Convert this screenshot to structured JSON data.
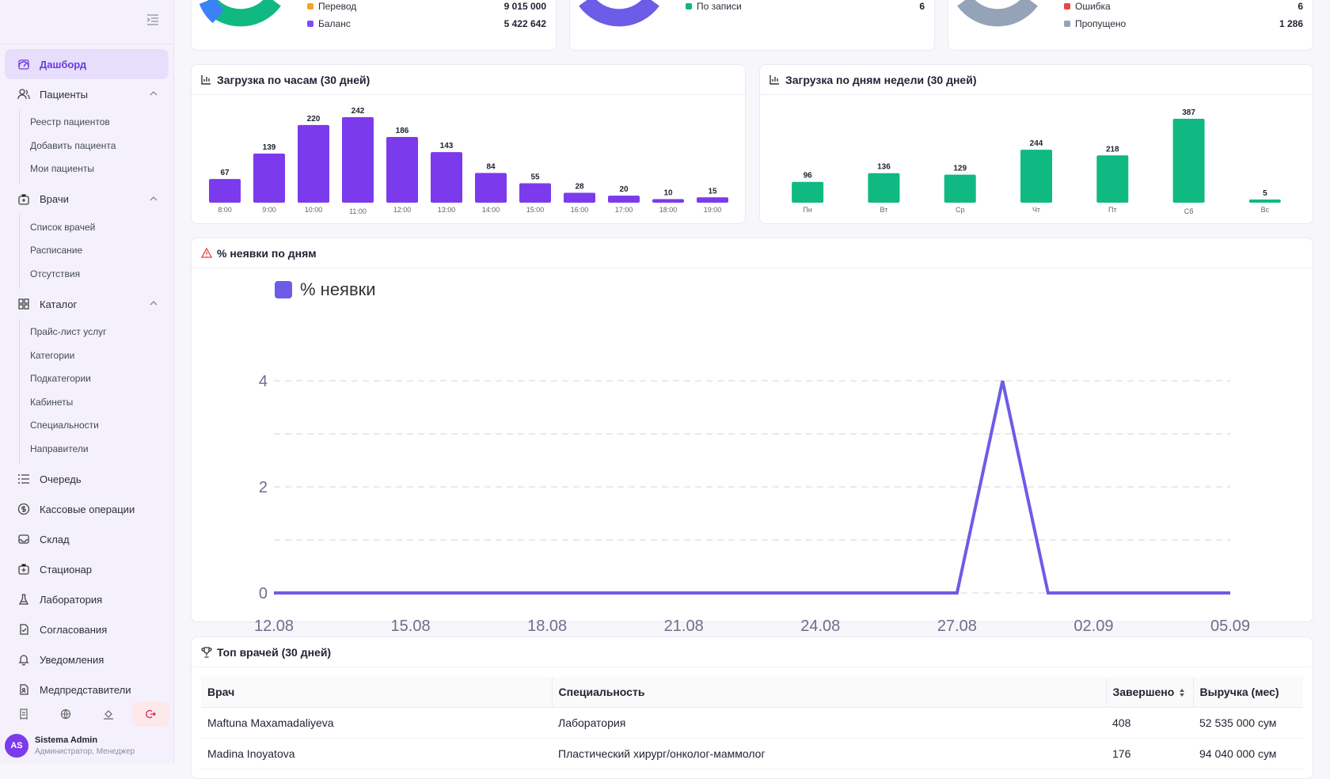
{
  "sidebar": {
    "nav": {
      "dashboard": "Дашборд",
      "patients": "Пациенты",
      "patients_sub": [
        "Реестр пациентов",
        "Добавить пациента",
        "Мои пациенты"
      ],
      "doctors": "Врачи",
      "doctors_sub": [
        "Список врачей",
        "Расписание",
        "Отсутствия"
      ],
      "catalog": "Каталог",
      "catalog_sub": [
        "Прайс-лист услуг",
        "Категории",
        "Подкатегории",
        "Кабинеты",
        "Специальности",
        "Направители"
      ],
      "queue": "Очередь",
      "cash": "Кассовые операции",
      "warehouse": "Склад",
      "hospital": "Стационар",
      "lab": "Лаборатория",
      "approvals": "Согласования",
      "notifications": "Уведомления",
      "reps": "Медпредставители"
    },
    "user": {
      "initials": "AS",
      "name": "Sistema Admin",
      "role": "Администратор, Менеджер"
    }
  },
  "top_cards": {
    "payments": {
      "legend": [
        {
          "label": "Перевод",
          "value": "9 015 000",
          "color": "#f5a524"
        },
        {
          "label": "Баланс",
          "value": "5 422 642",
          "color": "#7c4dff"
        }
      ]
    },
    "sources": {
      "legend": [
        {
          "label": "По записи",
          "value": "6",
          "color": "#10b981"
        }
      ]
    },
    "statuses": {
      "legend": [
        {
          "label": "Ошибка",
          "value": "6",
          "color": "#ef4444"
        },
        {
          "label": "Пропущено",
          "value": "1 286",
          "color": "#94a3b8"
        }
      ]
    }
  },
  "hours_chart": {
    "title": "Загрузка по часам (30 дней)",
    "chart_data": {
      "type": "bar",
      "categories": [
        "8:00",
        "9:00",
        "10:00",
        "11:00",
        "12:00",
        "13:00",
        "14:00",
        "15:00",
        "16:00",
        "17:00",
        "18:00",
        "19:00"
      ],
      "values": [
        67,
        139,
        220,
        242,
        186,
        143,
        84,
        55,
        28,
        20,
        10,
        15
      ],
      "color": "#7c3aed"
    }
  },
  "weekday_chart": {
    "title": "Загрузка по дням недели (30 дней)",
    "chart_data": {
      "type": "bar",
      "categories": [
        "Пн",
        "Вт",
        "Ср",
        "Чт",
        "Пт",
        "Сб",
        "Вс"
      ],
      "values": [
        96,
        136,
        129,
        244,
        218,
        387,
        5
      ],
      "color": "#10b981"
    }
  },
  "noshow_chart": {
    "title": "% неявки по дням",
    "chart_data": {
      "type": "line",
      "series": [
        {
          "name": "% неявки",
          "color": "#6c5ce7"
        }
      ],
      "x_ticks": [
        "12.08",
        "15.08",
        "18.08",
        "21.08",
        "24.08",
        "27.08",
        "02.09",
        "05.09"
      ],
      "y_ticks": [
        "0",
        "2",
        "4"
      ],
      "ylim": [
        0,
        4
      ],
      "points": [
        {
          "x": "12.08",
          "y": 0
        },
        {
          "x": "27.08",
          "y": 0
        },
        {
          "x": "28.08",
          "y": 4
        },
        {
          "x": "30.08",
          "y": 0
        },
        {
          "x": "05.09",
          "y": 0
        }
      ]
    }
  },
  "top_doctors": {
    "title": "Топ врачей (30 дней)",
    "columns": [
      "Врач",
      "Специальность",
      "Завершено",
      "Выручка (мес)"
    ],
    "rows": [
      [
        "Maftuna Maxamadaliyeva",
        "Лаборатория",
        "408",
        "52 535 000 сум"
      ],
      [
        "Madina Inoyatova",
        "Пластический хирург/онколог-маммолог",
        "176",
        "94 040 000 сум"
      ]
    ]
  }
}
